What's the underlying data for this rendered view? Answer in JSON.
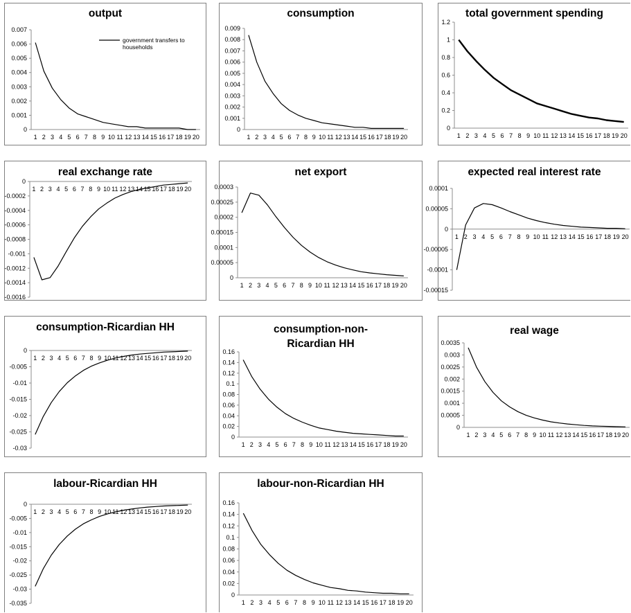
{
  "chart_data": [
    {
      "id": "p1",
      "type": "line",
      "title": "output",
      "categories": [
        "1",
        "2",
        "3",
        "4",
        "5",
        "6",
        "7",
        "8",
        "9",
        "10",
        "11",
        "12",
        "13",
        "14",
        "15",
        "16",
        "17",
        "18",
        "19",
        "20"
      ],
      "series": [
        {
          "name": "government transfers to households",
          "values": [
            0.0061,
            0.0041,
            0.0029,
            0.0021,
            0.0015,
            0.0011,
            0.0009,
            0.0007,
            0.0005,
            0.0004,
            0.0003,
            0.0002,
            0.0002,
            0.0001,
            0.0001,
            0.0001,
            0.0001,
            0.0001,
            0.0,
            0.0
          ]
        }
      ],
      "ylim": [
        0,
        0.007
      ],
      "yticks": [
        "0",
        "0.001",
        "0.002",
        "0.003",
        "0.004",
        "0.005",
        "0.006",
        "0.007"
      ],
      "legend": "top-right",
      "grid": false
    },
    {
      "id": "p2",
      "type": "line",
      "title": "consumption",
      "categories": [
        "1",
        "2",
        "3",
        "4",
        "5",
        "6",
        "7",
        "8",
        "9",
        "10",
        "11",
        "12",
        "13",
        "14",
        "15",
        "16",
        "17",
        "18",
        "19",
        "20"
      ],
      "series": [
        {
          "values": [
            0.0084,
            0.006,
            0.0043,
            0.0032,
            0.0023,
            0.0017,
            0.0013,
            0.001,
            0.0008,
            0.0006,
            0.0005,
            0.0004,
            0.0003,
            0.0002,
            0.0002,
            0.0001,
            0.0001,
            0.0001,
            0.0001,
            0.0001
          ]
        }
      ],
      "ylim": [
        0,
        0.009
      ],
      "yticks": [
        "0",
        "0.001",
        "0.002",
        "0.003",
        "0.004",
        "0.005",
        "0.006",
        "0.007",
        "0.008",
        "0.009"
      ],
      "grid": false
    },
    {
      "id": "p3",
      "type": "line",
      "title": "total government spending",
      "categories": [
        "1",
        "2",
        "3",
        "4",
        "5",
        "6",
        "7",
        "8",
        "9",
        "10",
        "11",
        "12",
        "13",
        "14",
        "15",
        "16",
        "17",
        "18",
        "19",
        "20"
      ],
      "series": [
        {
          "values": [
            1.0,
            0.87,
            0.76,
            0.66,
            0.57,
            0.5,
            0.43,
            0.38,
            0.33,
            0.28,
            0.25,
            0.22,
            0.19,
            0.16,
            0.14,
            0.12,
            0.11,
            0.09,
            0.08,
            0.07
          ]
        }
      ],
      "ylim": [
        0,
        1.2
      ],
      "yticks": [
        "0",
        "0.2",
        "0.4",
        "0.6",
        "0.8",
        "1",
        "1.2"
      ],
      "grid": false
    },
    {
      "id": "p4",
      "type": "line",
      "title": "real exchange rate",
      "categories": [
        "1",
        "2",
        "3",
        "4",
        "5",
        "6",
        "7",
        "8",
        "9",
        "10",
        "11",
        "12",
        "13",
        "14",
        "15",
        "16",
        "17",
        "18",
        "19",
        "20"
      ],
      "series": [
        {
          "values": [
            -0.00105,
            -0.00136,
            -0.00133,
            -0.00117,
            -0.00097,
            -0.00078,
            -0.00062,
            -0.00049,
            -0.00038,
            -0.0003,
            -0.00023,
            -0.00018,
            -0.00014,
            -0.00011,
            -9e-05,
            -7e-05,
            -5e-05,
            -4e-05,
            -3e-05,
            -2e-05
          ]
        }
      ],
      "ylim": [
        -0.0016,
        0
      ],
      "yticks": [
        "-0.0016",
        "-0.0014",
        "-0.0012",
        "-0.001",
        "-0.0008",
        "-0.0006",
        "-0.0004",
        "-0.0002",
        "0"
      ],
      "grid": false
    },
    {
      "id": "p5",
      "type": "line",
      "title": "net export",
      "categories": [
        "1",
        "2",
        "3",
        "4",
        "5",
        "6",
        "7",
        "8",
        "9",
        "10",
        "11",
        "12",
        "13",
        "14",
        "15",
        "16",
        "17",
        "18",
        "19",
        "20"
      ],
      "series": [
        {
          "values": [
            0.000215,
            0.00028,
            0.000273,
            0.000241,
            0.000202,
            0.000166,
            0.000134,
            0.000107,
            8.5e-05,
            6.7e-05,
            5.3e-05,
            4.2e-05,
            3.3e-05,
            2.6e-05,
            2e-05,
            1.6e-05,
            1.3e-05,
            1e-05,
            8e-06,
            6e-06
          ]
        }
      ],
      "ylim": [
        0,
        0.0003
      ],
      "yticks": [
        "0",
        "0.00005",
        "0.0001",
        "0.00015",
        "0.0002",
        "0.00025",
        "0.0003"
      ],
      "grid": false
    },
    {
      "id": "p6",
      "type": "line",
      "title": "expected real interest rate",
      "categories": [
        "1",
        "2",
        "3",
        "4",
        "5",
        "6",
        "7",
        "8",
        "9",
        "10",
        "11",
        "12",
        "13",
        "14",
        "15",
        "16",
        "17",
        "18",
        "19",
        "20"
      ],
      "series": [
        {
          "values": [
            -0.0001,
            1e-05,
            5.2e-05,
            6.3e-05,
            6e-05,
            5.2e-05,
            4.3e-05,
            3.5e-05,
            2.7e-05,
            2.1e-05,
            1.6e-05,
            1.2e-05,
            9e-06,
            7e-06,
            5e-06,
            4e-06,
            3e-06,
            2e-06,
            2e-06,
            1e-06
          ]
        }
      ],
      "ylim": [
        -0.00015,
        0.0001
      ],
      "yticks": [
        "-0.00015",
        "-0.0001",
        "-0.00005",
        "0",
        "0.00005",
        "0.0001"
      ],
      "grid": false
    },
    {
      "id": "p7",
      "type": "line",
      "title": "consumption-Ricardian HH",
      "categories": [
        "1",
        "2",
        "3",
        "4",
        "5",
        "6",
        "7",
        "8",
        "9",
        "10",
        "11",
        "12",
        "13",
        "14",
        "15",
        "16",
        "17",
        "18",
        "19",
        "20"
      ],
      "series": [
        {
          "values": [
            -0.0258,
            -0.0203,
            -0.016,
            -0.0126,
            -0.0099,
            -0.0078,
            -0.0061,
            -0.0048,
            -0.0038,
            -0.003,
            -0.0023,
            -0.0018,
            -0.0014,
            -0.0011,
            -0.0009,
            -0.0007,
            -0.0005,
            -0.0004,
            -0.0003,
            -0.0002
          ]
        }
      ],
      "ylim": [
        -0.03,
        0
      ],
      "yticks": [
        "-0.03",
        "-0.025",
        "-0.02",
        "-0.015",
        "-0.01",
        "-0.005",
        "0"
      ],
      "grid": false
    },
    {
      "id": "p8",
      "type": "line",
      "title": "consumption-non-\nRicardian HH",
      "categories": [
        "1",
        "2",
        "3",
        "4",
        "5",
        "6",
        "7",
        "8",
        "9",
        "10",
        "11",
        "12",
        "13",
        "14",
        "15",
        "16",
        "17",
        "18",
        "19",
        "20"
      ],
      "series": [
        {
          "values": [
            0.145,
            0.114,
            0.09,
            0.071,
            0.056,
            0.044,
            0.035,
            0.028,
            0.022,
            0.017,
            0.014,
            0.011,
            0.009,
            0.007,
            0.006,
            0.005,
            0.004,
            0.003,
            0.002,
            0.002
          ]
        }
      ],
      "ylim": [
        0,
        0.16
      ],
      "yticks": [
        "0",
        "0.02",
        "0.04",
        "0.06",
        "0.08",
        "0.1",
        "0.12",
        "0.14",
        "0.16"
      ],
      "grid": false
    },
    {
      "id": "p9",
      "type": "line",
      "title": "real wage",
      "categories": [
        "1",
        "2",
        "3",
        "4",
        "5",
        "6",
        "7",
        "8",
        "9",
        "10",
        "11",
        "12",
        "13",
        "14",
        "15",
        "16",
        "17",
        "18",
        "19",
        "20"
      ],
      "series": [
        {
          "values": [
            0.0033,
            0.0025,
            0.0019,
            0.00145,
            0.0011,
            0.00085,
            0.00065,
            0.0005,
            0.00039,
            0.0003,
            0.00023,
            0.00018,
            0.00014,
            0.00011,
            8e-05,
            6e-05,
            5e-05,
            4e-05,
            3e-05,
            2e-05
          ]
        }
      ],
      "ylim": [
        0,
        0.0035
      ],
      "yticks": [
        "0",
        "0.0005",
        "0.001",
        "0.0015",
        "0.002",
        "0.0025",
        "0.003",
        "0.0035"
      ],
      "grid": false
    },
    {
      "id": "p10",
      "type": "line",
      "title": "labour-Ricardian HH",
      "categories": [
        "1",
        "2",
        "3",
        "4",
        "5",
        "6",
        "7",
        "8",
        "9",
        "10",
        "11",
        "12",
        "13",
        "14",
        "15",
        "16",
        "17",
        "18",
        "19",
        "20"
      ],
      "series": [
        {
          "values": [
            -0.029,
            -0.0228,
            -0.018,
            -0.0142,
            -0.0112,
            -0.0088,
            -0.0069,
            -0.0055,
            -0.0043,
            -0.0034,
            -0.0027,
            -0.0021,
            -0.0017,
            -0.0013,
            -0.001,
            -0.0008,
            -0.0006,
            -0.0005,
            -0.0004,
            -0.0003
          ]
        }
      ],
      "ylim": [
        -0.035,
        0
      ],
      "yticks": [
        "-0.035",
        "-0.03",
        "-0.025",
        "-0.02",
        "-0.015",
        "-0.01",
        "-0.005",
        "0"
      ],
      "grid": false
    },
    {
      "id": "p11",
      "type": "line",
      "title": "labour-non-Ricardian HH",
      "categories": [
        "1",
        "2",
        "3",
        "4",
        "5",
        "6",
        "7",
        "8",
        "9",
        "10",
        "11",
        "12",
        "13",
        "14",
        "15",
        "16",
        "17",
        "18",
        "19",
        "20"
      ],
      "series": [
        {
          "values": [
            0.142,
            0.112,
            0.088,
            0.07,
            0.055,
            0.043,
            0.034,
            0.027,
            0.021,
            0.017,
            0.013,
            0.011,
            0.008,
            0.007,
            0.005,
            0.004,
            0.003,
            0.003,
            0.002,
            0.002
          ]
        }
      ],
      "ylim": [
        0,
        0.16
      ],
      "yticks": [
        "0",
        "0.02",
        "0.04",
        "0.06",
        "0.08",
        "0.1",
        "0.12",
        "0.14",
        "0.16"
      ],
      "grid": false
    }
  ]
}
